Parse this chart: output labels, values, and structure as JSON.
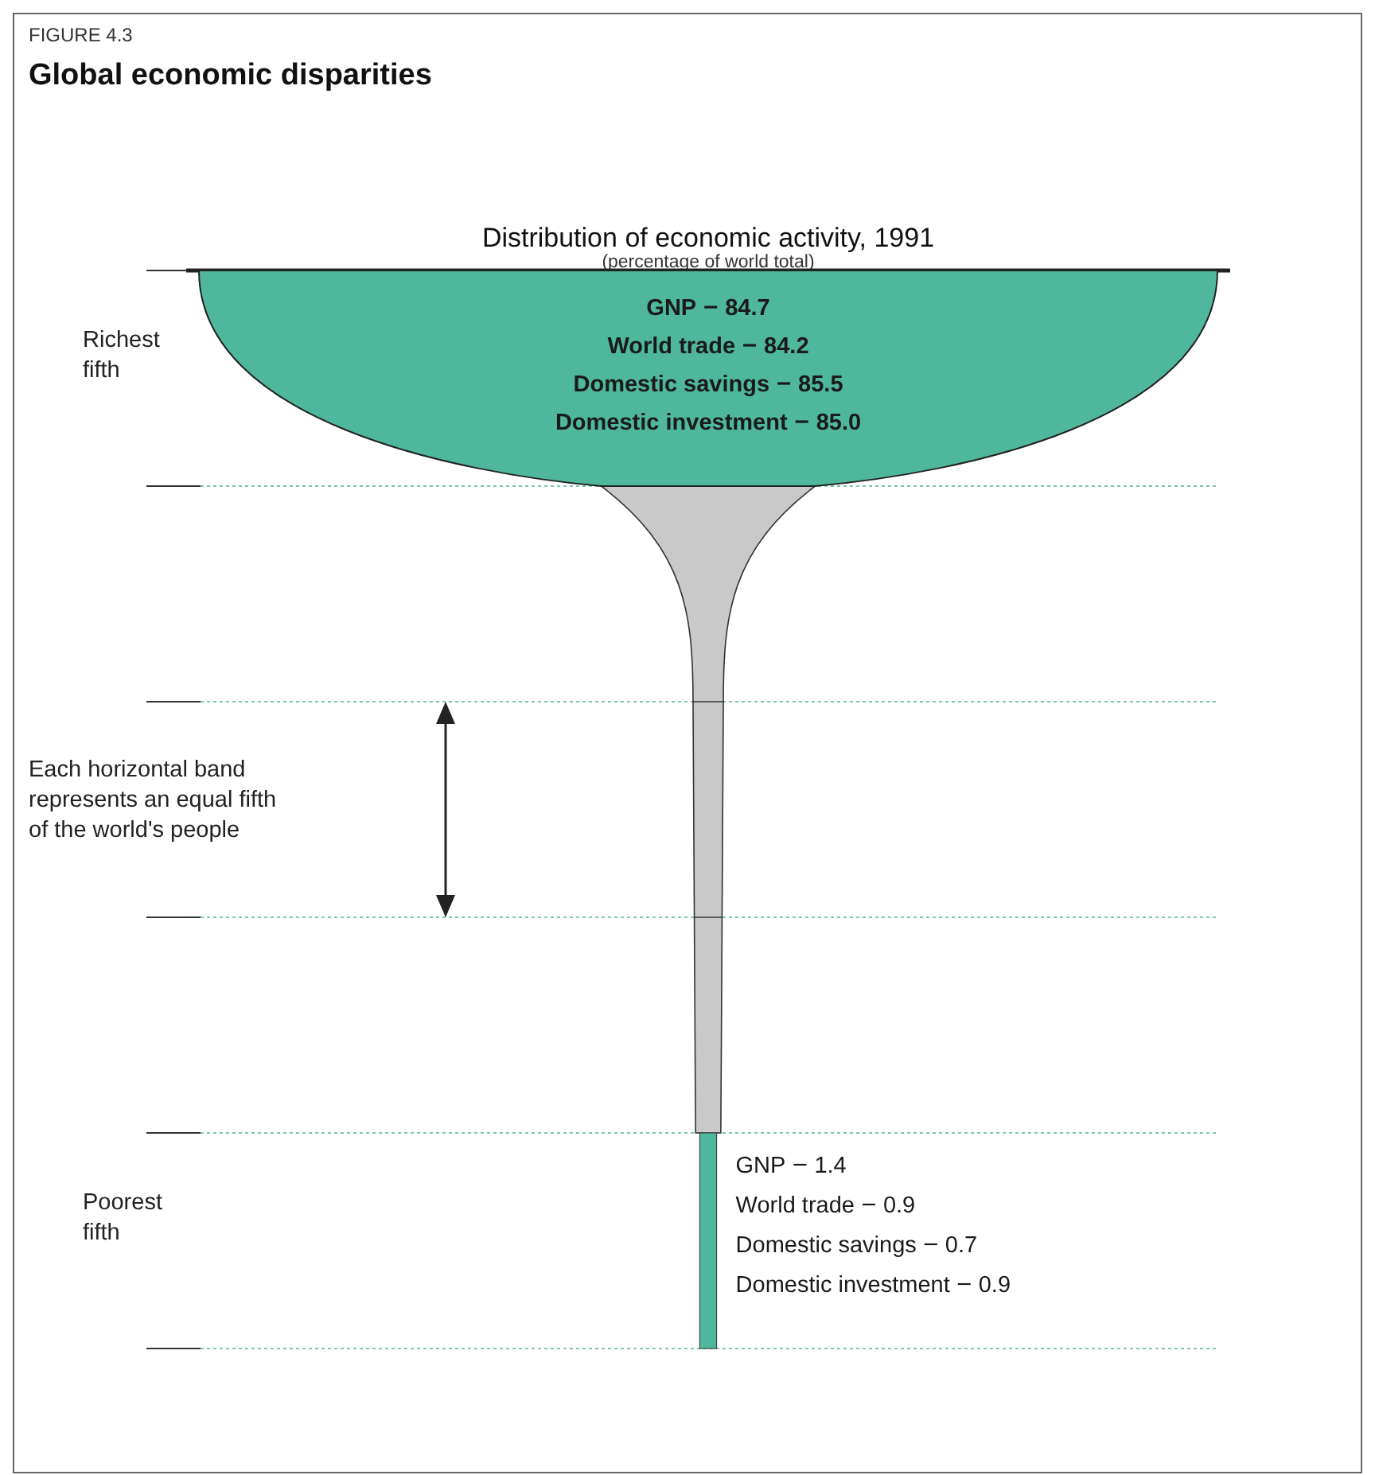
{
  "chart_data": {
    "type": "other",
    "title": "Global economic disparities",
    "subtitle": "Distribution of economic activity, 1991",
    "annotations": [
      "FIGURE 4.3",
      "(percentage of world total)",
      "Each horizontal band represents an equal fifth of the world's people"
    ],
    "categories": [
      "Richest fifth",
      null,
      null,
      null,
      "Poorest fifth"
    ],
    "series": [
      {
        "name": "GNP",
        "color": "#4fb89c",
        "values": [
          84.7,
          null,
          null,
          null,
          1.4
        ]
      },
      {
        "name": "World trade",
        "values": [
          84.2,
          null,
          null,
          null,
          0.9
        ]
      },
      {
        "name": "Domestic savings",
        "values": [
          85.5,
          null,
          null,
          null,
          0.7
        ]
      },
      {
        "name": "Domestic investment",
        "values": [
          85.0,
          null,
          null,
          null,
          0.9
        ],
        "value_labels": [
          "85.0",
          null,
          null,
          null,
          "0.9"
        ]
      }
    ],
    "data_labels": true
  }
}
